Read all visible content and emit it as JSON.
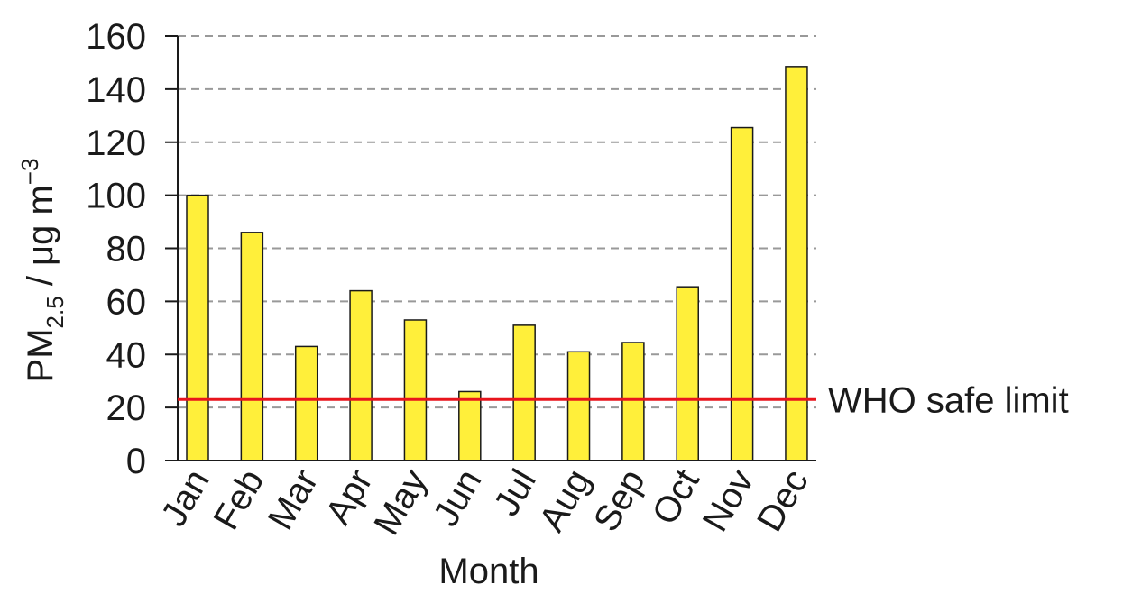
{
  "chart_data": {
    "type": "bar",
    "x_label": "Month",
    "y_label": {
      "base": "PM",
      "subscript": "2.5",
      "unit": " / μg m",
      "superscript": "−3"
    },
    "categories": [
      "Jan",
      "Feb",
      "Mar",
      "Apr",
      "May",
      "Jun",
      "Jul",
      "Aug",
      "Sep",
      "Oct",
      "Nov",
      "Dec"
    ],
    "values": [
      100,
      86,
      43,
      64,
      53,
      26,
      51,
      41,
      44.5,
      65.5,
      125.5,
      148.5
    ],
    "color": "#ffef3a",
    "ylim": [
      0,
      160
    ],
    "yticks": [
      0,
      20,
      40,
      60,
      80,
      100,
      120,
      140,
      160
    ],
    "grid": true,
    "reference_line": {
      "value": 23,
      "label": "WHO safe limit",
      "color": "#e8141c"
    }
  }
}
